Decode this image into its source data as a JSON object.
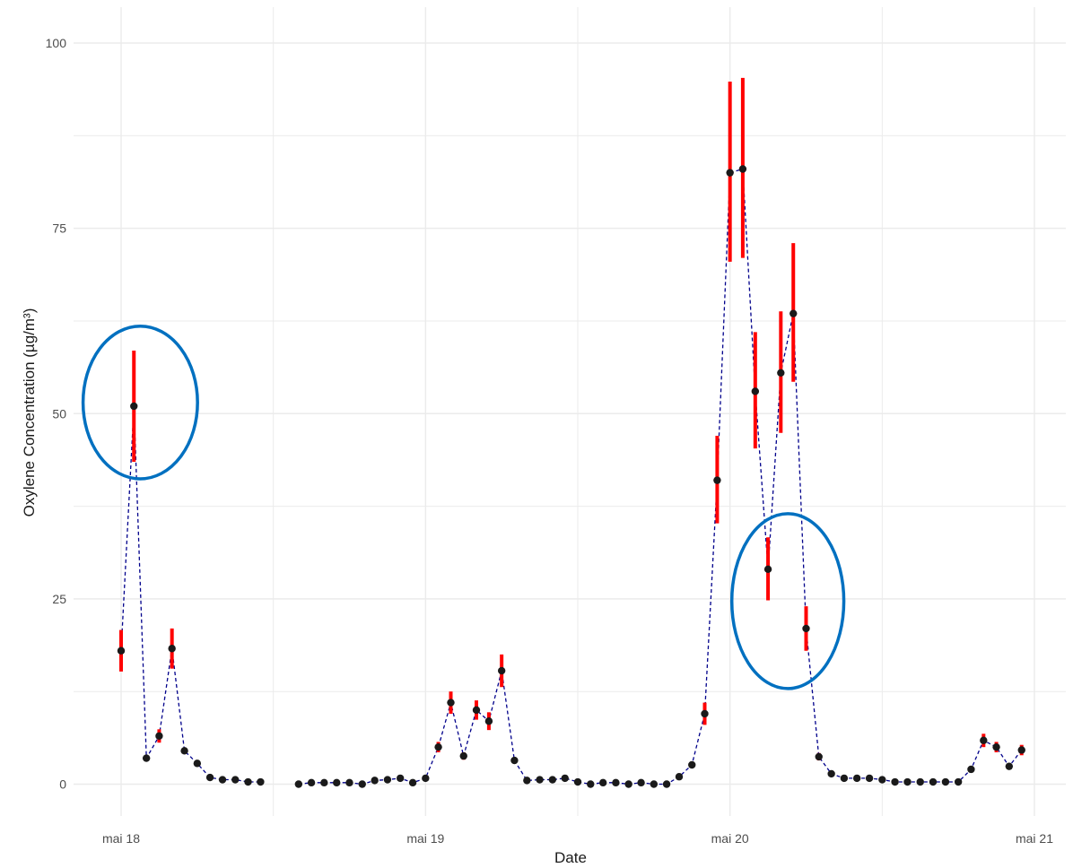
{
  "chart_data": {
    "type": "scatter",
    "title": "",
    "xlabel": "Date",
    "ylabel": "Oxylene Concentration (µg/m³)",
    "x_ticks": [
      "mai 18",
      "mai 19",
      "mai 20",
      "mai 21"
    ],
    "y_ticks": [
      "0",
      "25",
      "50",
      "75",
      "100"
    ],
    "ylim": [
      -4,
      104
    ],
    "xlim_days": [
      -0.11,
      3.1
    ],
    "grid": true,
    "legend": "none",
    "colors": {
      "points": "#1a1a1a",
      "error_bars": "#ff0000",
      "line": "#00008b",
      "highlight": "#0070c0",
      "grid": "#ebebeb"
    },
    "x_unit": "days from mai 18 00:00",
    "series": [
      {
        "x": [
          0.0,
          0.042,
          0.083,
          0.125,
          0.167,
          0.208,
          0.25,
          0.292,
          0.333,
          0.375,
          0.417,
          0.458
        ],
        "y": [
          18,
          51,
          3.5,
          6.5,
          18.3,
          4.5,
          2.8,
          0.9,
          0.6,
          0.6,
          0.3,
          0.3
        ],
        "err_low": [
          15.2,
          43.5,
          3.2,
          5.6,
          15.6,
          4.1,
          2.4,
          0.8,
          0.5,
          0.5,
          0.3,
          0.3
        ],
        "err_high": [
          20.8,
          58.5,
          3.8,
          7.4,
          21.0,
          4.9,
          3.2,
          1.0,
          0.7,
          0.7,
          0.3,
          0.3
        ]
      },
      {
        "x": [
          0.583,
          0.625,
          0.667,
          0.708,
          0.75,
          0.792,
          0.833,
          0.875,
          0.917,
          0.958,
          1.0,
          1.042,
          1.083,
          1.125,
          1.167,
          1.208,
          1.25,
          1.292,
          1.333,
          1.375,
          1.417,
          1.458,
          1.5,
          1.542,
          1.583,
          1.625,
          1.667,
          1.708,
          1.75,
          1.792,
          1.833,
          1.875,
          1.917,
          1.958,
          2.0,
          2.042,
          2.083,
          2.125,
          2.167,
          2.208,
          2.25,
          2.292,
          2.333,
          2.375,
          2.417,
          2.458,
          2.5,
          2.542,
          2.583,
          2.625,
          2.667,
          2.708,
          2.75,
          2.792,
          2.833,
          2.875,
          2.917,
          2.958
        ],
        "y": [
          0,
          0.2,
          0.2,
          0.2,
          0.2,
          0,
          0.5,
          0.6,
          0.8,
          0.2,
          0.8,
          5,
          11,
          3.8,
          10,
          8.5,
          15.3,
          3.2,
          0.5,
          0.6,
          0.6,
          0.8,
          0.3,
          0,
          0.2,
          0.2,
          0,
          0.2,
          0,
          0,
          1,
          2.6,
          9.5,
          41,
          82.5,
          83,
          53,
          29,
          55.5,
          63.5,
          21,
          3.7,
          1.4,
          0.8,
          0.8,
          0.8,
          0.6,
          0.3,
          0.3,
          0.3,
          0.3,
          0.3,
          0.3,
          2,
          5.9,
          5,
          2.4,
          4.6
        ],
        "err_low": [
          0,
          0.2,
          0.2,
          0.2,
          0.2,
          0,
          0.4,
          0.5,
          0.7,
          0.2,
          0.7,
          4.3,
          9.5,
          3.3,
          8.7,
          7.3,
          13.1,
          2.8,
          0.4,
          0.5,
          0.5,
          0.7,
          0.3,
          0,
          0.2,
          0.2,
          0,
          0.2,
          0,
          0,
          0.9,
          2.3,
          8.0,
          35.2,
          70.5,
          71.0,
          45.3,
          24.8,
          47.4,
          54.3,
          18.0,
          3.2,
          1.2,
          0.7,
          0.7,
          0.7,
          0.5,
          0.3,
          0.3,
          0.3,
          0.3,
          0.3,
          0.3,
          1.7,
          5.0,
          4.3,
          2.1,
          3.9
        ],
        "err_high": [
          0,
          0.2,
          0.2,
          0.2,
          0.2,
          0,
          0.6,
          0.7,
          0.9,
          0.2,
          0.9,
          5.7,
          12.5,
          4.3,
          11.3,
          9.7,
          17.5,
          3.6,
          0.6,
          0.7,
          0.7,
          0.9,
          0.3,
          0,
          0.2,
          0.2,
          0,
          0.2,
          0,
          0,
          1.1,
          2.9,
          11.0,
          47.0,
          94.8,
          95.3,
          61.0,
          33.3,
          63.8,
          73.0,
          24.0,
          4.2,
          1.6,
          0.9,
          0.9,
          0.9,
          0.7,
          0.3,
          0.3,
          0.3,
          0.3,
          0.3,
          0.3,
          2.3,
          6.8,
          5.7,
          2.7,
          5.3
        ]
      }
    ],
    "highlights": [
      {
        "x": 0.063,
        "y": 51.5,
        "rx_days": 0.188,
        "ry_units": 10.3
      },
      {
        "x": 2.19,
        "y": 24.7,
        "rx_days": 0.184,
        "ry_units": 11.8
      }
    ]
  }
}
